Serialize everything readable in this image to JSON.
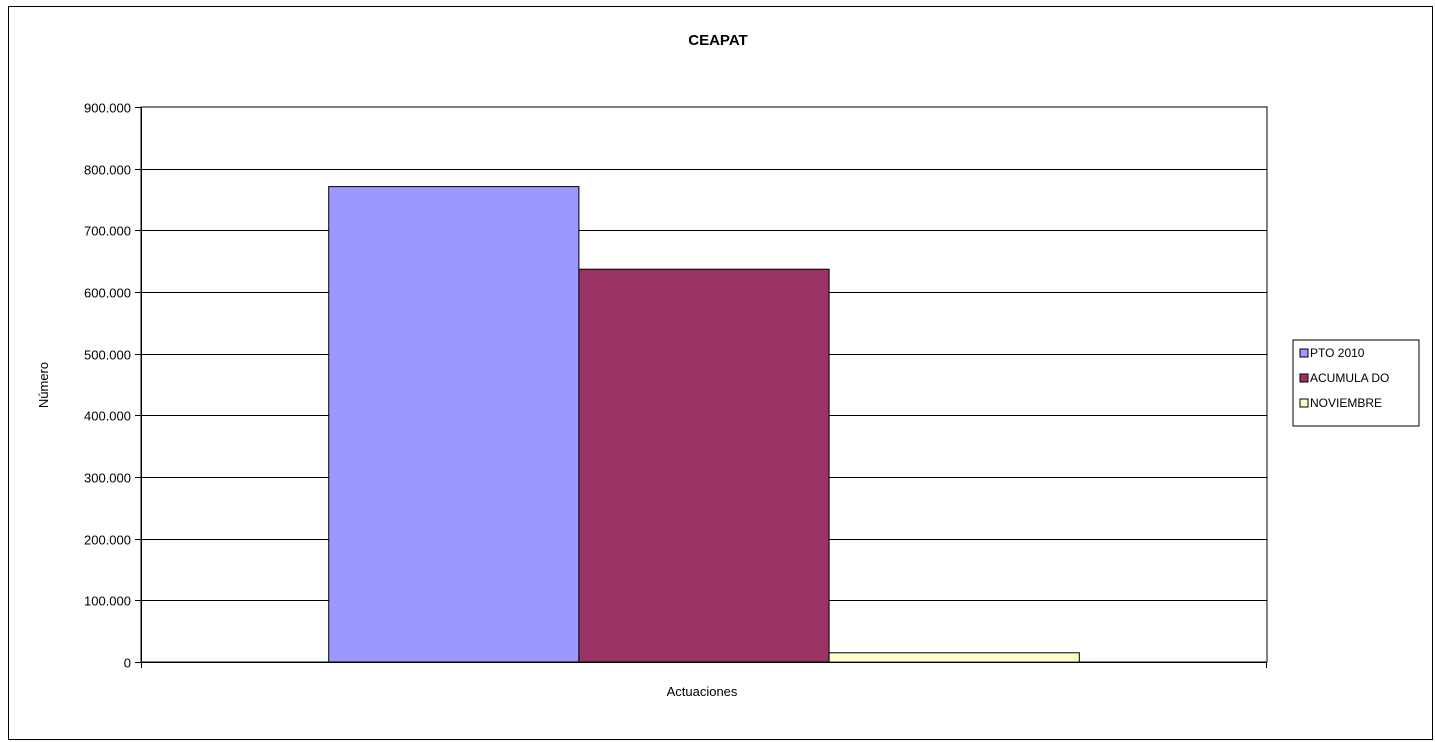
{
  "chart_data": {
    "type": "bar",
    "title": "CEAPAT",
    "xlabel": "Actuaciones",
    "ylabel": "Número",
    "categories": [
      "Actuaciones"
    ],
    "series": [
      {
        "name": "PTO  2010",
        "values": [
          771000
        ],
        "color": "#9999ff"
      },
      {
        "name": "ACUMULA DO",
        "values": [
          637000
        ],
        "color": "#993366"
      },
      {
        "name": "NOVIEMBRE",
        "values": [
          15000
        ],
        "color": "#ffffcc"
      }
    ],
    "ylim": [
      0,
      900000
    ],
    "yticks": [
      0,
      100000,
      200000,
      300000,
      400000,
      500000,
      600000,
      700000,
      800000,
      900000
    ],
    "ytick_labels": [
      "0",
      "100.000",
      "200.000",
      "300.000",
      "400.000",
      "500.000",
      "600.000",
      "700.000",
      "800.000",
      "900.000"
    ],
    "grid": true,
    "legend_position": "right"
  }
}
